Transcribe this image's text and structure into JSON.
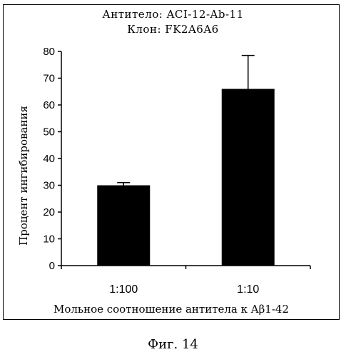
{
  "chart_data": {
    "type": "bar",
    "title_lines": [
      "Антитело: ACI-12-Ab-11",
      "Клон: FK2A6A6"
    ],
    "ylabel": "Процент ингибирования",
    "xlabel": "Мольное соотношение антитела к Aβ1-42",
    "categories": [
      "1:100",
      "1:10"
    ],
    "values": [
      30,
      66
    ],
    "errors": [
      1,
      12.5
    ],
    "ylim": [
      0,
      80
    ],
    "yticks": [
      0,
      10,
      20,
      30,
      40,
      50,
      60,
      70,
      80
    ],
    "bar_color": "#000000",
    "grid": false,
    "legend": "none"
  },
  "caption": "Фиг. 14"
}
